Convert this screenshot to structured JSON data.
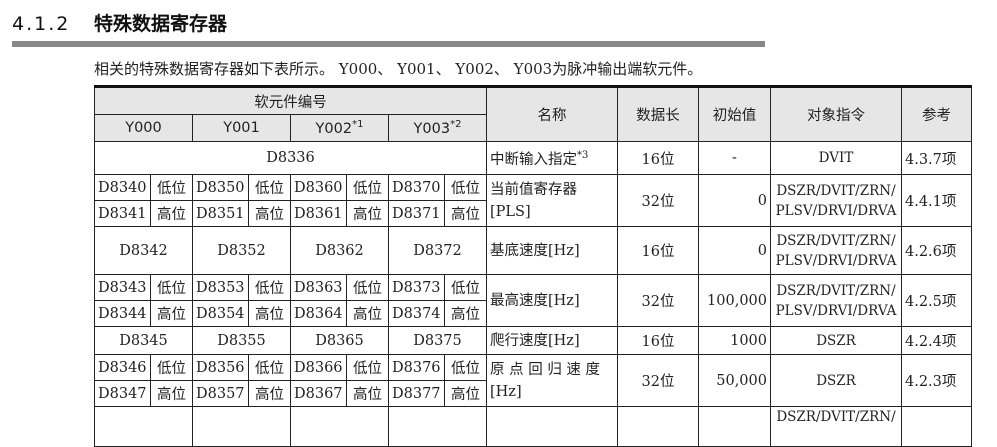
{
  "section": {
    "number": "4.1.2",
    "title": "特殊数据寄存器"
  },
  "intro": "相关的特殊数据寄存器如下表所示。 Y000、 Y001、 Y002、 Y003为脉冲输出端软元件。",
  "table": {
    "headers": {
      "device_no": "软元件编号",
      "y": [
        "Y000",
        "Y001",
        "Y002",
        "Y003"
      ],
      "y_notes": [
        "",
        "",
        "*1",
        "*2"
      ],
      "name": "名称",
      "length": "数据长",
      "initial": "初始值",
      "instruction": "对象指令",
      "reference": "参考"
    },
    "low": "低位",
    "high": "高位",
    "rows": [
      {
        "single": "D8336",
        "name": "中断输入指定",
        "note": "*3",
        "length": "16位",
        "initial": "-",
        "instruction": "DVIT",
        "reference": "4.3.7项"
      },
      {
        "low": [
          "D8340",
          "D8350",
          "D8360",
          "D8370"
        ],
        "high": [
          "D8341",
          "D8351",
          "D8361",
          "D8371"
        ],
        "name": "当前值寄存器[PLS]",
        "length": "32位",
        "initial": "0",
        "instruction": "DSZR/DVIT/ZRN/PLSV/DRVI/DRVA",
        "reference": "4.4.1项"
      },
      {
        "devices": [
          "D8342",
          "D8352",
          "D8362",
          "D8372"
        ],
        "name": "基底速度[Hz]",
        "length": "16位",
        "initial": "0",
        "instruction": "DSZR/DVIT/ZRN/PLSV/DRVI/DRVA",
        "reference": "4.2.6项"
      },
      {
        "low": [
          "D8343",
          "D8353",
          "D8363",
          "D8373"
        ],
        "high": [
          "D8344",
          "D8354",
          "D8364",
          "D8374"
        ],
        "name": "最高速度[Hz]",
        "length": "32位",
        "initial": "100,000",
        "instruction": "DSZR/DVIT/ZRN/PLSV/DRVI/DRVA",
        "reference": "4.2.5项"
      },
      {
        "devices": [
          "D8345",
          "D8355",
          "D8365",
          "D8375"
        ],
        "name": "爬行速度[Hz]",
        "length": "16位",
        "initial": "1000",
        "instruction": "DSZR",
        "reference": "4.2.4项"
      },
      {
        "low": [
          "D8346",
          "D8356",
          "D8366",
          "D8376"
        ],
        "high": [
          "D8347",
          "D8357",
          "D8367",
          "D8377"
        ],
        "name": "原 点 回 归 速 度 [Hz]",
        "length": "32位",
        "initial": "50,000",
        "instruction": "DSZR",
        "reference": "4.2.3项"
      },
      {
        "instruction": "DSZR/DVIT/ZRN/"
      }
    ]
  }
}
